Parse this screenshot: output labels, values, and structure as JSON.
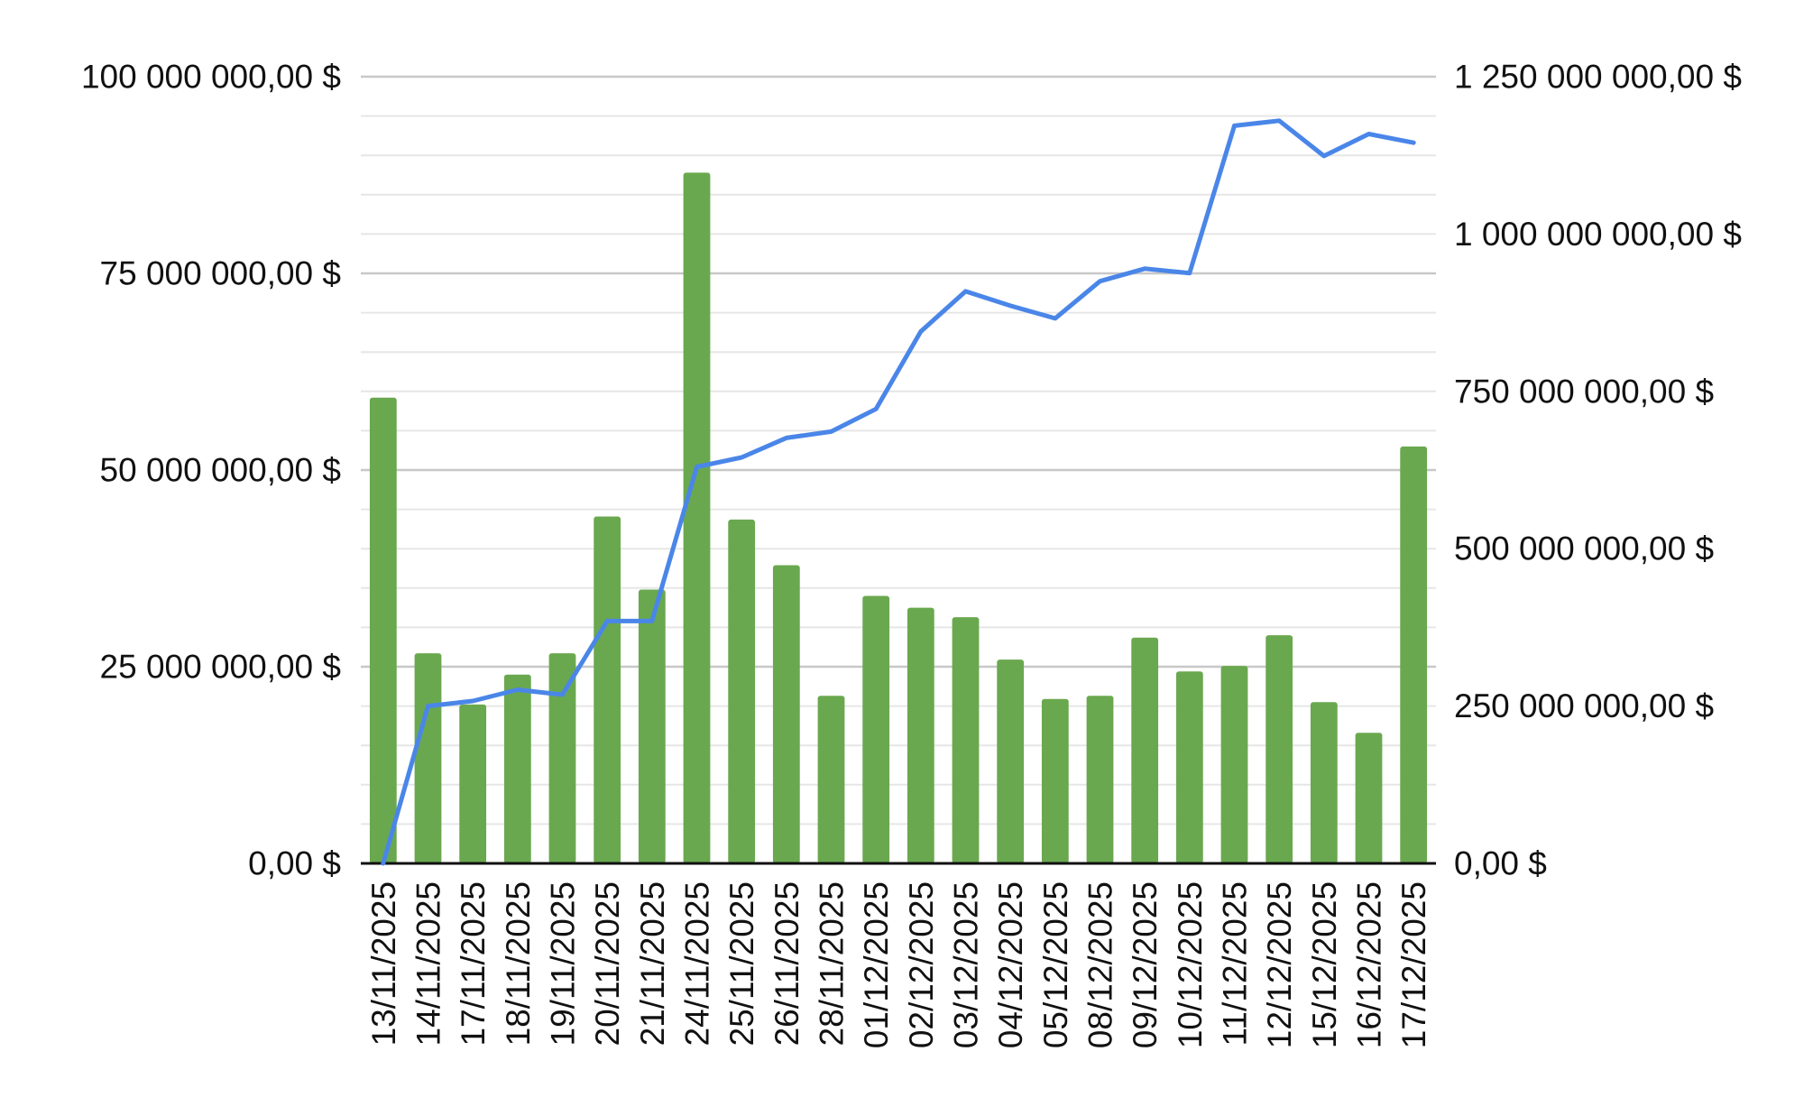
{
  "chart_data": {
    "type": "bar",
    "title": "",
    "xlabel": "",
    "ylabel": "",
    "y2label": "",
    "categories": [
      "13/11/2025",
      "14/11/2025",
      "17/11/2025",
      "18/11/2025",
      "19/11/2025",
      "20/11/2025",
      "21/11/2025",
      "24/11/2025",
      "25/11/2025",
      "26/11/2025",
      "28/11/2025",
      "01/12/2025",
      "02/12/2025",
      "03/12/2025",
      "04/12/2025",
      "05/12/2025",
      "08/12/2025",
      "09/12/2025",
      "10/12/2025",
      "11/12/2025",
      "12/12/2025",
      "15/12/2025",
      "16/12/2025",
      "17/12/2025"
    ],
    "series": [
      {
        "type": "bar",
        "axis": "left",
        "color": "#6aa84f",
        "values": [
          59200000,
          26700000,
          20200000,
          24000000,
          26700000,
          44100000,
          34800000,
          87800000,
          43700000,
          37900000,
          21300000,
          34000000,
          32500000,
          31300000,
          25900000,
          20900000,
          21300000,
          28700000,
          24400000,
          25100000,
          29000000,
          20500000,
          16600000,
          53000000
        ]
      },
      {
        "type": "line",
        "axis": "right",
        "color": "#4a86e8",
        "values": [
          0,
          250000000,
          258000000,
          276000000,
          268000000,
          385000000,
          385000000,
          630000000,
          645000000,
          676000000,
          686000000,
          722000000,
          845000000,
          909000000,
          886000000,
          866000000,
          925000000,
          945000000,
          938000000,
          1172000000,
          1180000000,
          1124000000,
          1159000000,
          1145000000
        ]
      }
    ],
    "ylim": [
      0,
      100000000
    ],
    "y2lim": [
      0,
      1250000000
    ],
    "y_ticks": [
      {
        "value": 0,
        "label": "0,00 $"
      },
      {
        "value": 25000000,
        "label": "25 000 000,00 $"
      },
      {
        "value": 50000000,
        "label": "50 000 000,00 $"
      },
      {
        "value": 75000000,
        "label": "75 000 000,00 $"
      },
      {
        "value": 100000000,
        "label": "100 000 000,00 $"
      }
    ],
    "y2_ticks": [
      {
        "value": 0,
        "label": "0,00 $"
      },
      {
        "value": 250000000,
        "label": "250 000 000,00 $"
      },
      {
        "value": 500000000,
        "label": "500 000 000,00 $"
      },
      {
        "value": 750000000,
        "label": "750 000 000,00 $"
      },
      {
        "value": 1000000000,
        "label": "1 000 000 000,00 $"
      },
      {
        "value": 1250000000,
        "label": "1 250 000 000,00 $"
      }
    ],
    "grid": true,
    "legend": "none",
    "colors": {
      "bar": "#6aa84f",
      "line": "#4a86e8",
      "major_grid": "#c8c8c8",
      "minor_grid": "#e6e6e6",
      "axis": "#111111"
    }
  }
}
